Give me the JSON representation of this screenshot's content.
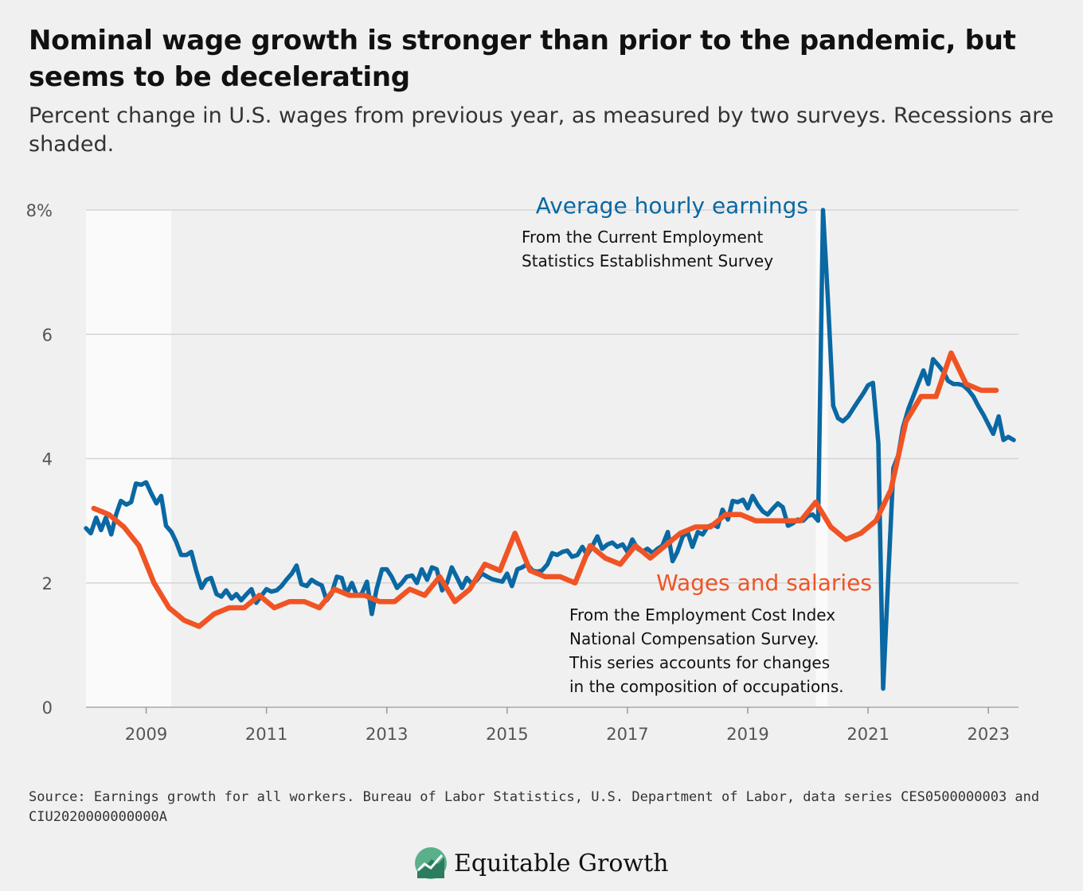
{
  "title": "Nominal wage growth is stronger than prior to the pandemic, but seems to be decelerating",
  "subtitle": "Percent change in U.S. wages from previous year, as measured by two surveys. Recessions are shaded.",
  "source": "Source: Earnings growth for all workers. Bureau of Labor Statistics, U.S. Department of Labor, data series CES0500000003 and CIU2020000000000A",
  "brand": {
    "name": "Equitable Growth",
    "logo_icon": "equitable-growth-logo-icon"
  },
  "annotations": {
    "ahe_head": "Average hourly earnings",
    "ahe_body_1": "From the Current Employment",
    "ahe_body_2": "Statistics Establishment Survey",
    "wages_head": "Wages and salaries",
    "wages_body_1": "From the Employment Cost Index",
    "wages_body_2": "National Compensation Survey.",
    "wages_body_3": "This series accounts for changes",
    "wages_body_4": "in the composition of occupations."
  },
  "chart_data": {
    "type": "line",
    "title": "",
    "xlabel": "",
    "ylabel": "",
    "xlim": [
      2008.0,
      2023.5
    ],
    "ylim": [
      0,
      8
    ],
    "x_ticks": [
      {
        "value": 2009,
        "label": "2009"
      },
      {
        "value": 2011,
        "label": "2011"
      },
      {
        "value": 2013,
        "label": "2013"
      },
      {
        "value": 2015,
        "label": "2015"
      },
      {
        "value": 2017,
        "label": "2017"
      },
      {
        "value": 2019,
        "label": "2019"
      },
      {
        "value": 2021,
        "label": "2021"
      },
      {
        "value": 2023,
        "label": "2023"
      }
    ],
    "y_ticks": [
      {
        "value": 0,
        "label": "0"
      },
      {
        "value": 2,
        "label": "2"
      },
      {
        "value": 4,
        "label": "4"
      },
      {
        "value": 6,
        "label": "6"
      },
      {
        "value": 8,
        "label": "8%"
      }
    ],
    "grid": true,
    "recessions": [
      {
        "start": 2008.0,
        "end": 2009.42
      },
      {
        "start": 2020.13,
        "end": 2020.33
      }
    ],
    "series": [
      {
        "name": "Average hourly earnings",
        "color": "#0a68a3",
        "points": [
          [
            2008.0,
            2.88
          ],
          [
            2008.08,
            2.8
          ],
          [
            2008.17,
            3.05
          ],
          [
            2008.25,
            2.85
          ],
          [
            2008.33,
            3.05
          ],
          [
            2008.42,
            2.78
          ],
          [
            2008.5,
            3.1
          ],
          [
            2008.58,
            3.32
          ],
          [
            2008.67,
            3.26
          ],
          [
            2008.75,
            3.3
          ],
          [
            2008.83,
            3.6
          ],
          [
            2008.92,
            3.58
          ],
          [
            2009.0,
            3.62
          ],
          [
            2009.08,
            3.45
          ],
          [
            2009.17,
            3.28
          ],
          [
            2009.25,
            3.4
          ],
          [
            2009.33,
            2.92
          ],
          [
            2009.42,
            2.82
          ],
          [
            2009.5,
            2.66
          ],
          [
            2009.58,
            2.45
          ],
          [
            2009.67,
            2.45
          ],
          [
            2009.75,
            2.5
          ],
          [
            2009.83,
            2.2
          ],
          [
            2009.92,
            1.92
          ],
          [
            2010.0,
            2.05
          ],
          [
            2010.08,
            2.08
          ],
          [
            2010.17,
            1.82
          ],
          [
            2010.25,
            1.78
          ],
          [
            2010.33,
            1.88
          ],
          [
            2010.42,
            1.75
          ],
          [
            2010.5,
            1.82
          ],
          [
            2010.58,
            1.72
          ],
          [
            2010.67,
            1.82
          ],
          [
            2010.75,
            1.9
          ],
          [
            2010.83,
            1.68
          ],
          [
            2010.92,
            1.8
          ],
          [
            2011.0,
            1.9
          ],
          [
            2011.08,
            1.86
          ],
          [
            2011.17,
            1.88
          ],
          [
            2011.25,
            1.95
          ],
          [
            2011.33,
            2.05
          ],
          [
            2011.42,
            2.15
          ],
          [
            2011.5,
            2.28
          ],
          [
            2011.58,
            1.98
          ],
          [
            2011.67,
            1.95
          ],
          [
            2011.75,
            2.05
          ],
          [
            2011.83,
            2.0
          ],
          [
            2011.92,
            1.96
          ],
          [
            2012.0,
            1.72
          ],
          [
            2012.08,
            1.82
          ],
          [
            2012.17,
            2.1
          ],
          [
            2012.25,
            2.08
          ],
          [
            2012.33,
            1.82
          ],
          [
            2012.42,
            2.0
          ],
          [
            2012.5,
            1.8
          ],
          [
            2012.58,
            1.82
          ],
          [
            2012.67,
            2.02
          ],
          [
            2012.75,
            1.5
          ],
          [
            2012.83,
            1.9
          ],
          [
            2012.92,
            2.22
          ],
          [
            2013.0,
            2.22
          ],
          [
            2013.08,
            2.1
          ],
          [
            2013.17,
            1.92
          ],
          [
            2013.25,
            2.0
          ],
          [
            2013.33,
            2.1
          ],
          [
            2013.42,
            2.12
          ],
          [
            2013.5,
            2.0
          ],
          [
            2013.58,
            2.22
          ],
          [
            2013.67,
            2.05
          ],
          [
            2013.75,
            2.25
          ],
          [
            2013.83,
            2.22
          ],
          [
            2013.92,
            1.88
          ],
          [
            2014.0,
            2.0
          ],
          [
            2014.08,
            2.25
          ],
          [
            2014.17,
            2.08
          ],
          [
            2014.25,
            1.92
          ],
          [
            2014.33,
            2.08
          ],
          [
            2014.42,
            1.98
          ],
          [
            2014.5,
            2.05
          ],
          [
            2014.58,
            2.15
          ],
          [
            2014.67,
            2.1
          ],
          [
            2014.75,
            2.06
          ],
          [
            2014.83,
            2.04
          ],
          [
            2014.92,
            2.02
          ],
          [
            2015.0,
            2.15
          ],
          [
            2015.08,
            1.95
          ],
          [
            2015.17,
            2.22
          ],
          [
            2015.25,
            2.25
          ],
          [
            2015.33,
            2.3
          ],
          [
            2015.42,
            2.2
          ],
          [
            2015.5,
            2.18
          ],
          [
            2015.58,
            2.2
          ],
          [
            2015.67,
            2.3
          ],
          [
            2015.75,
            2.48
          ],
          [
            2015.83,
            2.45
          ],
          [
            2015.92,
            2.5
          ],
          [
            2016.0,
            2.52
          ],
          [
            2016.08,
            2.42
          ],
          [
            2016.17,
            2.45
          ],
          [
            2016.25,
            2.58
          ],
          [
            2016.33,
            2.45
          ],
          [
            2016.42,
            2.6
          ],
          [
            2016.5,
            2.75
          ],
          [
            2016.58,
            2.55
          ],
          [
            2016.67,
            2.62
          ],
          [
            2016.75,
            2.65
          ],
          [
            2016.83,
            2.58
          ],
          [
            2016.92,
            2.62
          ],
          [
            2017.0,
            2.5
          ],
          [
            2017.08,
            2.7
          ],
          [
            2017.17,
            2.55
          ],
          [
            2017.25,
            2.5
          ],
          [
            2017.33,
            2.55
          ],
          [
            2017.42,
            2.48
          ],
          [
            2017.5,
            2.55
          ],
          [
            2017.58,
            2.6
          ],
          [
            2017.67,
            2.82
          ],
          [
            2017.75,
            2.35
          ],
          [
            2017.83,
            2.5
          ],
          [
            2017.92,
            2.75
          ],
          [
            2018.0,
            2.82
          ],
          [
            2018.08,
            2.58
          ],
          [
            2018.17,
            2.82
          ],
          [
            2018.25,
            2.78
          ],
          [
            2018.33,
            2.9
          ],
          [
            2018.42,
            2.94
          ],
          [
            2018.5,
            2.9
          ],
          [
            2018.58,
            3.18
          ],
          [
            2018.67,
            3.02
          ],
          [
            2018.75,
            3.32
          ],
          [
            2018.83,
            3.3
          ],
          [
            2018.92,
            3.34
          ],
          [
            2019.0,
            3.2
          ],
          [
            2019.08,
            3.4
          ],
          [
            2019.17,
            3.25
          ],
          [
            2019.25,
            3.15
          ],
          [
            2019.33,
            3.1
          ],
          [
            2019.42,
            3.2
          ],
          [
            2019.5,
            3.28
          ],
          [
            2019.58,
            3.22
          ],
          [
            2019.67,
            2.92
          ],
          [
            2019.75,
            2.96
          ],
          [
            2019.83,
            3.02
          ],
          [
            2019.92,
            3.0
          ],
          [
            2020.0,
            3.08
          ],
          [
            2020.08,
            3.1
          ],
          [
            2020.17,
            3.0
          ],
          [
            2020.25,
            8.0
          ],
          [
            2020.33,
            6.6
          ],
          [
            2020.42,
            4.85
          ],
          [
            2020.5,
            4.65
          ],
          [
            2020.58,
            4.6
          ],
          [
            2020.67,
            4.68
          ],
          [
            2020.75,
            4.8
          ],
          [
            2020.83,
            4.92
          ],
          [
            2020.92,
            5.05
          ],
          [
            2021.0,
            5.18
          ],
          [
            2021.08,
            5.22
          ],
          [
            2021.17,
            4.25
          ],
          [
            2021.25,
            0.3
          ],
          [
            2021.33,
            2.0
          ],
          [
            2021.42,
            3.85
          ],
          [
            2021.5,
            4.05
          ],
          [
            2021.58,
            4.5
          ],
          [
            2021.67,
            4.8
          ],
          [
            2021.75,
            5.0
          ],
          [
            2021.83,
            5.2
          ],
          [
            2021.92,
            5.42
          ],
          [
            2022.0,
            5.2
          ],
          [
            2022.08,
            5.6
          ],
          [
            2022.17,
            5.5
          ],
          [
            2022.25,
            5.4
          ],
          [
            2022.33,
            5.25
          ],
          [
            2022.42,
            5.2
          ],
          [
            2022.5,
            5.2
          ],
          [
            2022.58,
            5.18
          ],
          [
            2022.67,
            5.1
          ],
          [
            2022.75,
            5.0
          ],
          [
            2022.83,
            4.85
          ],
          [
            2022.92,
            4.7
          ],
          [
            2023.0,
            4.55
          ],
          [
            2023.08,
            4.4
          ],
          [
            2023.17,
            4.68
          ],
          [
            2023.25,
            4.3
          ],
          [
            2023.33,
            4.35
          ],
          [
            2023.42,
            4.3
          ]
        ]
      },
      {
        "name": "Wages and salaries",
        "color": "#f05424",
        "points": [
          [
            2008.13,
            3.2
          ],
          [
            2008.38,
            3.1
          ],
          [
            2008.63,
            2.9
          ],
          [
            2008.88,
            2.6
          ],
          [
            2009.13,
            2.0
          ],
          [
            2009.38,
            1.6
          ],
          [
            2009.63,
            1.4
          ],
          [
            2009.88,
            1.3
          ],
          [
            2010.13,
            1.5
          ],
          [
            2010.38,
            1.6
          ],
          [
            2010.63,
            1.6
          ],
          [
            2010.88,
            1.8
          ],
          [
            2011.13,
            1.6
          ],
          [
            2011.38,
            1.7
          ],
          [
            2011.63,
            1.7
          ],
          [
            2011.88,
            1.6
          ],
          [
            2012.13,
            1.9
          ],
          [
            2012.38,
            1.8
          ],
          [
            2012.63,
            1.8
          ],
          [
            2012.88,
            1.7
          ],
          [
            2013.13,
            1.7
          ],
          [
            2013.38,
            1.9
          ],
          [
            2013.63,
            1.8
          ],
          [
            2013.88,
            2.1
          ],
          [
            2014.13,
            1.7
          ],
          [
            2014.38,
            1.9
          ],
          [
            2014.63,
            2.3
          ],
          [
            2014.88,
            2.2
          ],
          [
            2015.13,
            2.8
          ],
          [
            2015.38,
            2.2
          ],
          [
            2015.63,
            2.1
          ],
          [
            2015.88,
            2.1
          ],
          [
            2016.13,
            2.0
          ],
          [
            2016.38,
            2.6
          ],
          [
            2016.63,
            2.4
          ],
          [
            2016.88,
            2.3
          ],
          [
            2017.13,
            2.6
          ],
          [
            2017.38,
            2.4
          ],
          [
            2017.63,
            2.6
          ],
          [
            2017.88,
            2.8
          ],
          [
            2018.13,
            2.9
          ],
          [
            2018.38,
            2.9
          ],
          [
            2018.63,
            3.1
          ],
          [
            2018.88,
            3.1
          ],
          [
            2019.13,
            3.0
          ],
          [
            2019.38,
            3.0
          ],
          [
            2019.63,
            3.0
          ],
          [
            2019.88,
            3.0
          ],
          [
            2020.13,
            3.3
          ],
          [
            2020.38,
            2.9
          ],
          [
            2020.63,
            2.7
          ],
          [
            2020.88,
            2.8
          ],
          [
            2021.13,
            3.0
          ],
          [
            2021.38,
            3.5
          ],
          [
            2021.63,
            4.6
          ],
          [
            2021.88,
            5.0
          ],
          [
            2022.13,
            5.0
          ],
          [
            2022.38,
            5.7
          ],
          [
            2022.63,
            5.2
          ],
          [
            2022.88,
            5.1
          ],
          [
            2023.13,
            5.1
          ]
        ]
      }
    ]
  }
}
